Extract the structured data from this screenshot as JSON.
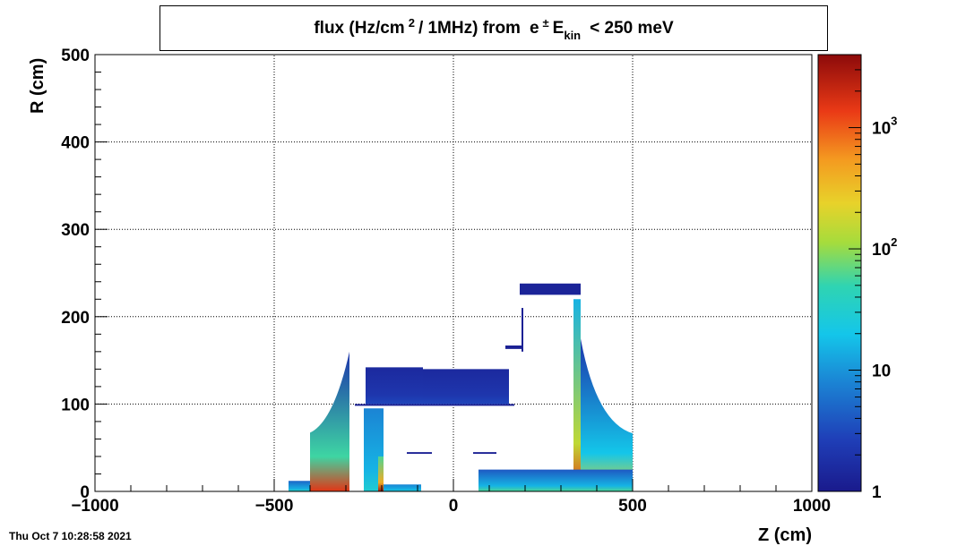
{
  "chart_data": {
    "type": "heatmap",
    "title": {
      "part1": "flux (Hz/cm",
      "sup1": "2",
      "part2": "/ 1MHz) from",
      "particle": "e",
      "particle_sup": "±",
      "var": "E",
      "var_sub": "kin",
      "part3": "< 250 meV"
    },
    "xlabel": "Z (cm)",
    "ylabel": "R (cm)",
    "xlim": [
      -1000,
      1000
    ],
    "ylim": [
      0,
      500
    ],
    "x_ticks": [
      {
        "value": -1000,
        "label": "−1000"
      },
      {
        "value": -500,
        "label": "−500"
      },
      {
        "value": 0,
        "label": "0"
      },
      {
        "value": 500,
        "label": "500"
      },
      {
        "value": 1000,
        "label": "1000"
      }
    ],
    "y_ticks": [
      {
        "value": 0,
        "label": "0"
      },
      {
        "value": 100,
        "label": "100"
      },
      {
        "value": 200,
        "label": "200"
      },
      {
        "value": 300,
        "label": "300"
      },
      {
        "value": 400,
        "label": "400"
      },
      {
        "value": 500,
        "label": "500"
      }
    ],
    "grid": true,
    "colorbar": {
      "scale": "log",
      "range": [
        1,
        4000
      ],
      "ticks": [
        {
          "value": 1,
          "base": "1",
          "exp": ""
        },
        {
          "value": 10,
          "base": "10",
          "exp": ""
        },
        {
          "value": 100,
          "base": "10",
          "exp": "2"
        },
        {
          "value": 1000,
          "base": "10",
          "exp": "3"
        }
      ]
    },
    "regions": [
      {
        "z": [
          -400,
          -290
        ],
        "r": [
          0,
          160
        ],
        "shape": "endcap-left",
        "value_at_base": 1500,
        "value_at_top": 2
      },
      {
        "z": [
          -460,
          -400
        ],
        "r": [
          0,
          12
        ],
        "shape": "band",
        "value_at_base": 40,
        "value_at_top": 5
      },
      {
        "z": [
          -245,
          -85
        ],
        "r": [
          100,
          142
        ],
        "shape": "block",
        "value_at_base": 3,
        "value_at_top": 1.5
      },
      {
        "z": [
          -85,
          155
        ],
        "r": [
          100,
          140
        ],
        "shape": "block",
        "value_at_base": 3,
        "value_at_top": 1.5
      },
      {
        "z": [
          -275,
          170
        ],
        "r": [
          98,
          100
        ],
        "shape": "line",
        "value_at_base": 1.2,
        "value_at_top": 1.2
      },
      {
        "z": [
          -250,
          -195
        ],
        "r": [
          0,
          95
        ],
        "shape": "bar",
        "value_at_base": 30,
        "value_at_top": 8
      },
      {
        "z": [
          -210,
          -195
        ],
        "r": [
          0,
          40
        ],
        "shape": "spike",
        "value_at_base": 3000,
        "value_at_top": 60
      },
      {
        "z": [
          -195,
          -90
        ],
        "r": [
          0,
          8
        ],
        "shape": "band",
        "value_at_base": 30,
        "value_at_top": 8
      },
      {
        "z": [
          -130,
          -60
        ],
        "r": [
          43,
          45
        ],
        "shape": "line",
        "value_at_base": 1.2,
        "value_at_top": 1.2
      },
      {
        "z": [
          55,
          120
        ],
        "r": [
          43,
          45
        ],
        "shape": "line",
        "value_at_base": 1.2,
        "value_at_top": 1.2
      },
      {
        "z": [
          185,
          355
        ],
        "r": [
          225,
          238
        ],
        "shape": "block",
        "value_at_base": 1.3,
        "value_at_top": 1.3
      },
      {
        "z": [
          190,
          195
        ],
        "r": [
          160,
          210
        ],
        "shape": "line",
        "value_at_base": 1.2,
        "value_at_top": 1.2
      },
      {
        "z": [
          145,
          190
        ],
        "r": [
          163,
          167
        ],
        "shape": "line",
        "value_at_base": 1.2,
        "value_at_top": 1.2
      },
      {
        "z": [
          335,
          355
        ],
        "r": [
          0,
          220
        ],
        "shape": "spike",
        "value_at_base": 1500,
        "value_at_top": 15
      },
      {
        "z": [
          355,
          500
        ],
        "r": [
          0,
          175
        ],
        "shape": "endcap-right",
        "value_at_base": 200,
        "value_at_top": 2
      },
      {
        "z": [
          70,
          500
        ],
        "r": [
          0,
          25
        ],
        "shape": "band",
        "value_at_base": 60,
        "value_at_top": 4
      }
    ]
  },
  "footer": {
    "timestamp": "Thu Oct  7 10:28:58 2021"
  }
}
